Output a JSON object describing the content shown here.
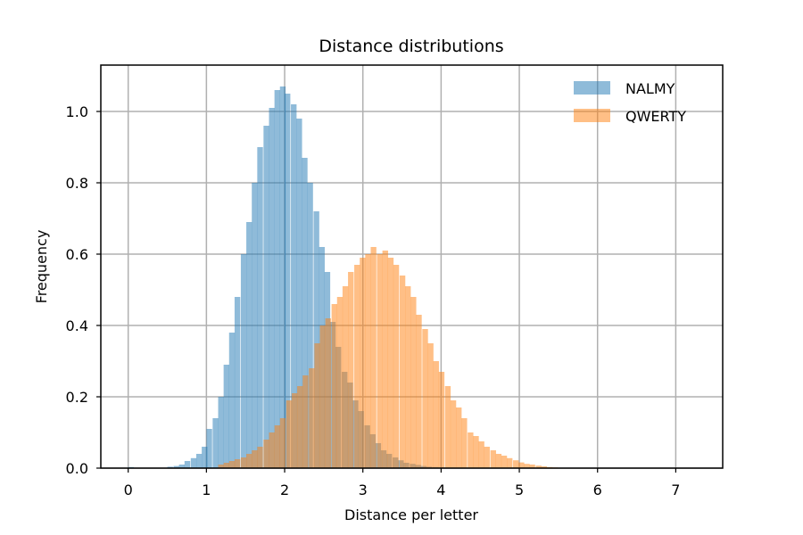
{
  "chart_data": {
    "type": "histogram",
    "title": "Distance distributions",
    "xlabel": "Distance per letter",
    "ylabel": "Frequency",
    "xlim": [
      -0.35,
      7.6
    ],
    "ylim": [
      0,
      1.13
    ],
    "bin_width": 0.0725,
    "xticks": [
      0,
      1,
      2,
      3,
      4,
      5,
      6,
      7
    ],
    "yticks": [
      0.0,
      0.2,
      0.4,
      0.6,
      0.8,
      1.0
    ],
    "xtick_labels": [
      "0",
      "1",
      "2",
      "3",
      "4",
      "5",
      "6",
      "7"
    ],
    "ytick_labels": [
      "0.0",
      "0.2",
      "0.4",
      "0.6",
      "0.8",
      "1.0"
    ],
    "grid": true,
    "legend_position": "top-right",
    "series": [
      {
        "name": "NALMY",
        "color": "#1f77b4",
        "alpha": 0.5,
        "bins": [
          [
            0.0,
            0.003
          ],
          [
            0.5,
            0.004
          ],
          [
            0.58,
            0.006
          ],
          [
            0.65,
            0.01
          ],
          [
            0.72,
            0.02
          ],
          [
            0.8,
            0.028
          ],
          [
            0.87,
            0.04
          ],
          [
            0.94,
            0.06
          ],
          [
            1.0,
            0.11
          ],
          [
            1.08,
            0.14
          ],
          [
            1.15,
            0.2
          ],
          [
            1.22,
            0.29
          ],
          [
            1.29,
            0.38
          ],
          [
            1.36,
            0.48
          ],
          [
            1.44,
            0.6
          ],
          [
            1.51,
            0.69
          ],
          [
            1.58,
            0.8
          ],
          [
            1.65,
            0.9
          ],
          [
            1.73,
            0.96
          ],
          [
            1.8,
            1.01
          ],
          [
            1.87,
            1.06
          ],
          [
            1.94,
            1.07
          ],
          [
            2.0,
            1.05
          ],
          [
            2.08,
            1.02
          ],
          [
            2.15,
            0.98
          ],
          [
            2.22,
            0.87
          ],
          [
            2.29,
            0.8
          ],
          [
            2.37,
            0.72
          ],
          [
            2.44,
            0.62
          ],
          [
            2.51,
            0.55
          ],
          [
            2.58,
            0.41
          ],
          [
            2.65,
            0.34
          ],
          [
            2.73,
            0.27
          ],
          [
            2.8,
            0.24
          ],
          [
            2.87,
            0.19
          ],
          [
            2.94,
            0.16
          ],
          [
            3.02,
            0.12
          ],
          [
            3.09,
            0.095
          ],
          [
            3.16,
            0.07
          ],
          [
            3.23,
            0.05
          ],
          [
            3.3,
            0.04
          ],
          [
            3.38,
            0.03
          ],
          [
            3.45,
            0.022
          ],
          [
            3.52,
            0.015
          ],
          [
            3.6,
            0.012
          ],
          [
            3.67,
            0.009
          ],
          [
            3.74,
            0.006
          ],
          [
            3.81,
            0.004
          ],
          [
            3.89,
            0.003
          ],
          [
            3.96,
            0.002
          ],
          [
            4.03,
            0.001
          ]
        ]
      },
      {
        "name": "QWERTY",
        "color": "#ff7f0e",
        "alpha": 0.5,
        "bins": [
          [
            1.15,
            0.01
          ],
          [
            1.22,
            0.015
          ],
          [
            1.29,
            0.02
          ],
          [
            1.36,
            0.025
          ],
          [
            1.44,
            0.03
          ],
          [
            1.51,
            0.04
          ],
          [
            1.58,
            0.05
          ],
          [
            1.65,
            0.06
          ],
          [
            1.73,
            0.08
          ],
          [
            1.8,
            0.1
          ],
          [
            1.87,
            0.12
          ],
          [
            1.94,
            0.14
          ],
          [
            2.02,
            0.19
          ],
          [
            2.09,
            0.21
          ],
          [
            2.16,
            0.23
          ],
          [
            2.23,
            0.26
          ],
          [
            2.31,
            0.28
          ],
          [
            2.38,
            0.35
          ],
          [
            2.45,
            0.4
          ],
          [
            2.52,
            0.42
          ],
          [
            2.6,
            0.46
          ],
          [
            2.67,
            0.48
          ],
          [
            2.74,
            0.51
          ],
          [
            2.81,
            0.55
          ],
          [
            2.89,
            0.57
          ],
          [
            2.96,
            0.59
          ],
          [
            3.03,
            0.6
          ],
          [
            3.1,
            0.62
          ],
          [
            3.18,
            0.6
          ],
          [
            3.25,
            0.61
          ],
          [
            3.32,
            0.59
          ],
          [
            3.39,
            0.57
          ],
          [
            3.47,
            0.54
          ],
          [
            3.54,
            0.51
          ],
          [
            3.61,
            0.48
          ],
          [
            3.68,
            0.43
          ],
          [
            3.76,
            0.39
          ],
          [
            3.83,
            0.35
          ],
          [
            3.9,
            0.3
          ],
          [
            3.97,
            0.27
          ],
          [
            4.05,
            0.23
          ],
          [
            4.12,
            0.19
          ],
          [
            4.19,
            0.17
          ],
          [
            4.26,
            0.14
          ],
          [
            4.34,
            0.1
          ],
          [
            4.41,
            0.09
          ],
          [
            4.48,
            0.075
          ],
          [
            4.55,
            0.06
          ],
          [
            4.63,
            0.05
          ],
          [
            4.7,
            0.04
          ],
          [
            4.77,
            0.035
          ],
          [
            4.84,
            0.028
          ],
          [
            4.92,
            0.022
          ],
          [
            4.99,
            0.016
          ],
          [
            5.06,
            0.012
          ],
          [
            5.13,
            0.01
          ],
          [
            5.21,
            0.007
          ],
          [
            5.28,
            0.005
          ],
          [
            5.35,
            0.003
          ],
          [
            5.42,
            0.002
          ],
          [
            5.5,
            0.001
          ]
        ]
      }
    ]
  }
}
